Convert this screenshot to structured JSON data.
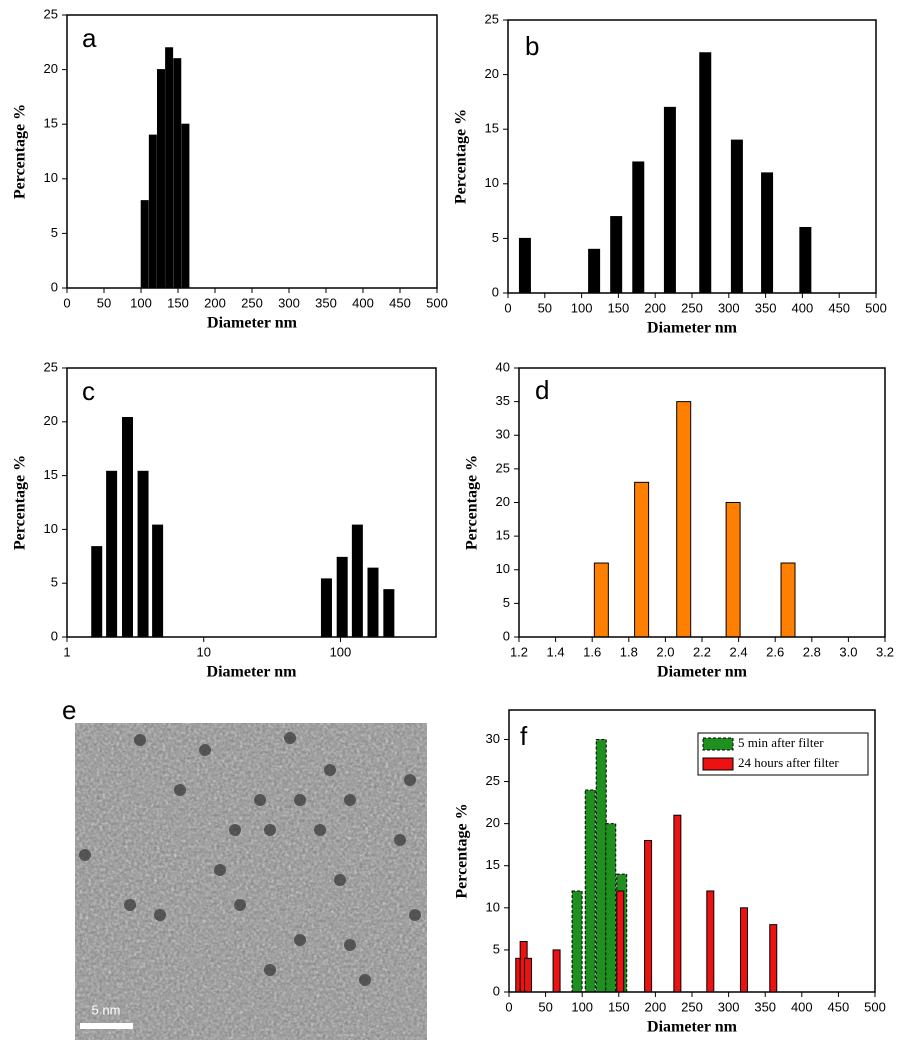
{
  "chart_data": [
    {
      "type": "bar",
      "label": "a",
      "xlabel": "Diameter nm",
      "ylabel": "Percentage %",
      "color": "#000000",
      "x": [
        105,
        116,
        127,
        138,
        149,
        160
      ],
      "values": [
        8,
        14,
        20,
        22,
        21,
        15
      ],
      "xlim": [
        0,
        500
      ],
      "xticks": [
        0,
        50,
        100,
        150,
        200,
        250,
        300,
        350,
        400,
        450,
        500
      ],
      "ylim": [
        0,
        25
      ],
      "yticks": [
        0,
        5,
        10,
        15,
        20,
        25
      ]
    },
    {
      "type": "bar",
      "label": "b",
      "xlabel": "Diameter nm",
      "ylabel": "Percentage %",
      "color": "#000000",
      "x": [
        23,
        117,
        147,
        177,
        220,
        268,
        311,
        352,
        404
      ],
      "values": [
        5,
        4,
        7,
        12,
        17,
        22,
        14,
        11,
        6
      ],
      "xlim": [
        0,
        500
      ],
      "xticks": [
        0,
        50,
        100,
        150,
        200,
        250,
        300,
        350,
        400,
        450,
        500
      ],
      "ylim": [
        0,
        25
      ],
      "yticks": [
        0,
        5,
        10,
        15,
        20,
        25
      ]
    },
    {
      "type": "bar",
      "label": "c",
      "xlabel": "Diameter nm",
      "ylabel": "Percentage %",
      "color": "#000000",
      "log_x": true,
      "x": [
        1.65,
        2.12,
        2.77,
        3.6,
        4.6,
        79,
        103,
        133,
        173,
        226
      ],
      "values": [
        8.4,
        15.4,
        20.4,
        15.4,
        10.4,
        5.4,
        7.4,
        10.4,
        6.4,
        4.4
      ],
      "xlim": [
        1,
        500
      ],
      "xticks": [
        1,
        10,
        100
      ],
      "ylim": [
        0,
        25
      ],
      "yticks": [
        0,
        5,
        10,
        15,
        20,
        25
      ]
    },
    {
      "type": "bar",
      "label": "d",
      "xlabel": "Diameter nm",
      "ylabel": "Percentage %",
      "color": "#ff8000",
      "x": [
        1.65,
        1.87,
        2.1,
        2.37,
        2.67
      ],
      "values": [
        11,
        23,
        35,
        20,
        11
      ],
      "xlim": [
        1.2,
        3.2
      ],
      "xticks": [
        1.2,
        1.4,
        1.6,
        1.8,
        {
          "value": 2,
          "label": "2.0"
        },
        2.2,
        2.4,
        2.6,
        2.8,
        {
          "value": 3,
          "label": "3.0"
        },
        3.2
      ],
      "ylim": [
        0,
        40
      ],
      "yticks": [
        0,
        5,
        10,
        15,
        20,
        25,
        30,
        35,
        40
      ]
    },
    {
      "type": "image",
      "label": "e",
      "scale_label": "5 nm"
    },
    {
      "type": "bar",
      "label": "f",
      "xlabel": "Diameter nm",
      "ylabel": "Percentage %",
      "series": [
        {
          "name": "5 min after filter",
          "color": "#1f8f1f",
          "x": [
            93,
            111,
            126,
            139,
            154
          ],
          "values": [
            12,
            24,
            30,
            20,
            14
          ]
        },
        {
          "name": "24 hours after filter",
          "color": "#ee1111",
          "x": [
            14,
            20,
            26,
            65,
            152,
            190,
            230,
            275,
            321,
            361
          ],
          "values": [
            4,
            6,
            4,
            5,
            12,
            18,
            21,
            12,
            10,
            8
          ]
        }
      ],
      "xlim": [
        0,
        500
      ],
      "xticks": [
        0,
        50,
        100,
        150,
        200,
        250,
        300,
        350,
        400,
        450,
        500
      ],
      "ylim": [
        0,
        33.5
      ],
      "yticks": [
        0,
        5,
        10,
        15,
        20,
        25,
        30
      ]
    }
  ]
}
